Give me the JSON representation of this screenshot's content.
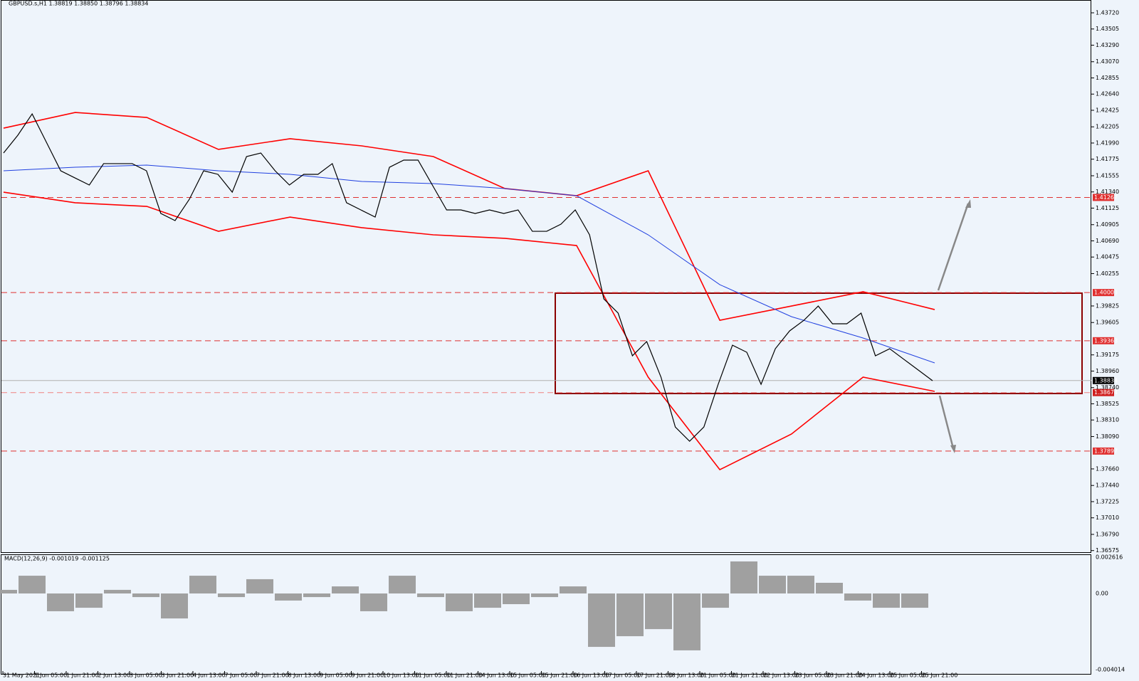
{
  "header": "GBPUSD.s,H1  1.38819 1.38850 1.38796 1.38834",
  "price_axis": [
    {
      "value": 1.4372,
      "label": "1.43720"
    },
    {
      "value": 1.43505,
      "label": "1.43505"
    },
    {
      "value": 1.4329,
      "label": "1.43290"
    },
    {
      "value": 1.4307,
      "label": "1.43070"
    },
    {
      "value": 1.42855,
      "label": "1.42855"
    },
    {
      "value": 1.4264,
      "label": "1.42640"
    },
    {
      "value": 1.42425,
      "label": "1.42425"
    },
    {
      "value": 1.42205,
      "label": "1.42205"
    },
    {
      "value": 1.4199,
      "label": "1.41990"
    },
    {
      "value": 1.41775,
      "label": "1.41775"
    },
    {
      "value": 1.41555,
      "label": "1.41555"
    },
    {
      "value": 1.4134,
      "label": "1.41340"
    },
    {
      "value": 1.41125,
      "label": "1.41125"
    },
    {
      "value": 1.40905,
      "label": "1.40905"
    },
    {
      "value": 1.4069,
      "label": "1.40690"
    },
    {
      "value": 1.40475,
      "label": "1.40475"
    },
    {
      "value": 1.40255,
      "label": "1.40255"
    },
    {
      "value": 1.39825,
      "label": "1.39825"
    },
    {
      "value": 1.39605,
      "label": "1.39605"
    },
    {
      "value": 1.39175,
      "label": "1.39175"
    },
    {
      "value": 1.3896,
      "label": "1.38960"
    },
    {
      "value": 1.3874,
      "label": "1.38740"
    },
    {
      "value": 1.38525,
      "label": "1.38525"
    },
    {
      "value": 1.3831,
      "label": "1.38310"
    },
    {
      "value": 1.3809,
      "label": "1.38090"
    },
    {
      "value": 1.3766,
      "label": "1.37660"
    },
    {
      "value": 1.3744,
      "label": "1.37440"
    },
    {
      "value": 1.37225,
      "label": "1.37225"
    },
    {
      "value": 1.3701,
      "label": "1.37010"
    },
    {
      "value": 1.3679,
      "label": "1.36790"
    },
    {
      "value": 1.36575,
      "label": "1.36575"
    }
  ],
  "levels": [
    {
      "value": 1.41267,
      "label": "1.41267"
    },
    {
      "value": 1.40003,
      "label": "1.40003"
    },
    {
      "value": 1.39363,
      "label": "1.39363"
    },
    {
      "value": 1.37897,
      "label": "1.37897"
    }
  ],
  "box_bottom": {
    "value": 1.38674,
    "label": "1.38674"
  },
  "current": {
    "value": 1.38834,
    "label": "1.38834"
  },
  "time_axis": [
    "31 May 2021",
    "1 Jun 05:00",
    "1 Jun 21:00",
    "2 Jun 13:00",
    "3 Jun 05:00",
    "3 Jun 21:00",
    "4 Jun 13:00",
    "7 Jun 05:00",
    "7 Jun 21:00",
    "8 Jun 13:00",
    "9 Jun 05:00",
    "9 Jun 21:00",
    "10 Jun 13:00",
    "11 Jun 05:00",
    "11 Jun 21:00",
    "14 Jun 13:00",
    "15 Jun 05:00",
    "15 Jun 21:00",
    "16 Jun 13:00",
    "17 Jun 05:00",
    "17 Jun 21:00",
    "18 Jun 13:00",
    "21 Jun 05:00",
    "21 Jun 21:00",
    "22 Jun 13:00",
    "23 Jun 05:00",
    "23 Jun 21:00",
    "24 Jun 13:00",
    "25 Jun 05:00",
    "25 Jun 21:00"
  ],
  "close": [
    1.41857,
    1.42094,
    1.42377,
    1.41999,
    1.41621,
    1.41526,
    1.41432,
    1.41716,
    1.41716,
    1.41716,
    1.41621,
    1.41054,
    1.40959,
    1.41243,
    1.41621,
    1.41574,
    1.41337,
    1.4181,
    1.41857,
    1.41621,
    1.41432,
    1.41574,
    1.41574,
    1.41716,
    1.41196,
    1.41101,
    1.41006,
    1.41668,
    1.41763,
    1.41763,
    1.41432,
    1.41101,
    1.41101,
    1.41054,
    1.41101,
    1.41054,
    1.41101,
    1.40817,
    1.40817,
    1.40912,
    1.41101,
    1.4077,
    1.39919,
    1.3973,
    1.39163,
    1.39352,
    1.38879,
    1.38217,
    1.38028,
    1.38217,
    1.38784,
    1.39304,
    1.3921,
    1.38784,
    1.39257,
    1.39494,
    1.39635,
    1.39824,
    1.39588,
    1.39588,
    1.3973,
    1.39163,
    1.39257,
    1.39115,
    1.38974,
    1.38832
  ],
  "upper_band": [
    1.42188,
    1.42396,
    1.4233,
    1.41905,
    1.42047,
    1.41952,
    1.4181,
    1.41385,
    1.4129,
    1.41621,
    1.39635,
    1.39824,
    1.40014,
    1.39777
  ],
  "lower_band": [
    1.41337,
    1.41196,
    1.41148,
    1.40817,
    1.41006,
    1.40865,
    1.4077,
    1.40723,
    1.40628,
    1.38879,
    1.3765,
    1.38123,
    1.38879,
    1.3869
  ],
  "ma": [
    1.41621,
    1.41668,
    1.41697,
    1.41621,
    1.41574,
    1.41479,
    1.41451,
    1.41385,
    1.4129,
    1.4077,
    1.40108,
    1.39683,
    1.39399,
    1.39068
  ],
  "macd": {
    "label": "MACD(12,26,9) -0.001019 -0.001125",
    "axis": [
      {
        "value": 0.002616,
        "label": "0.002616"
      },
      {
        "value": 0,
        "label": "0.00"
      },
      {
        "value": -0.004014,
        "label": "-0.004014"
      }
    ],
    "histogram": [
      0.00026,
      0.00128,
      -0.00128,
      -0.00103,
      0.00026,
      -0.00026,
      -0.0018,
      0.00128,
      -0.00026,
      0.00103,
      -0.00051,
      -0.00026,
      0.00051,
      -0.00128,
      0.00128,
      -0.00026,
      -0.00128,
      -0.00103,
      -0.00077,
      -0.00026,
      0.00051,
      -0.00385,
      -0.00308,
      -0.00257,
      -0.0041,
      -0.00103,
      0.00231,
      0.00128,
      0.00128,
      0.00077,
      -0.00051,
      -0.00103,
      -0.00103
    ]
  }
}
